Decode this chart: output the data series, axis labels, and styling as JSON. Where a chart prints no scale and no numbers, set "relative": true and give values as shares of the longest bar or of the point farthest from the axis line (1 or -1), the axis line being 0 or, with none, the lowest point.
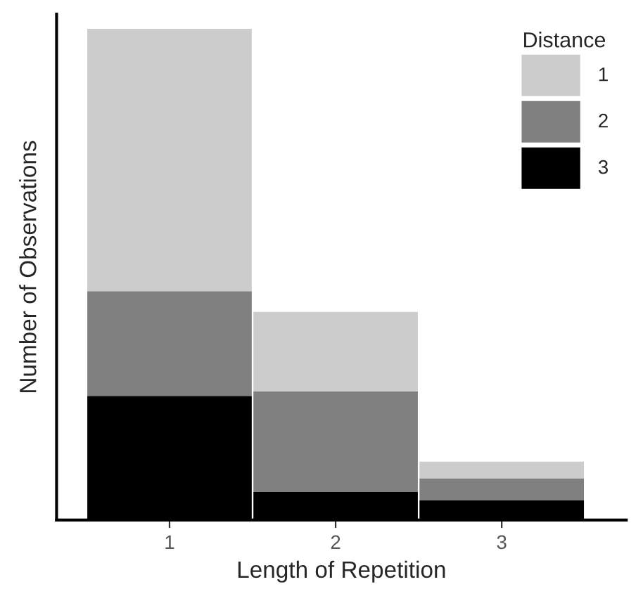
{
  "chart_data": {
    "type": "bar",
    "stacked": true,
    "relative": true,
    "xlabel": "Length of Repetition",
    "ylabel": "Number of Observations",
    "legend_title": "Distance",
    "legend": "top right",
    "grid": false,
    "categories": [
      "1",
      "2",
      "3"
    ],
    "series": [
      {
        "name": "3",
        "color": "#000000",
        "values": [
          0.253,
          0.057,
          0.04
        ]
      },
      {
        "name": "2",
        "color": "#808080",
        "values": [
          0.213,
          0.205,
          0.045
        ]
      },
      {
        "name": "1",
        "color": "#cccccc",
        "values": [
          0.534,
          0.162,
          0.034
        ]
      }
    ]
  }
}
